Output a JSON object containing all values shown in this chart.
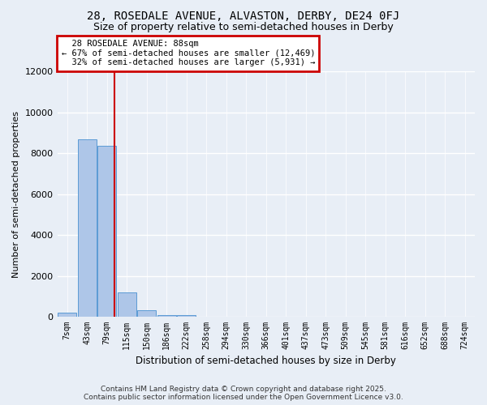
{
  "title": "28, ROSEDALE AVENUE, ALVASTON, DERBY, DE24 0FJ",
  "subtitle": "Size of property relative to semi-detached houses in Derby",
  "xlabel": "Distribution of semi-detached houses by size in Derby",
  "ylabel": "Number of semi-detached properties",
  "footer_line1": "Contains HM Land Registry data © Crown copyright and database right 2025.",
  "footer_line2": "Contains public sector information licensed under the Open Government Licence v3.0.",
  "bin_labels": [
    "7sqm",
    "43sqm",
    "79sqm",
    "115sqm",
    "150sqm",
    "186sqm",
    "222sqm",
    "258sqm",
    "294sqm",
    "330sqm",
    "366sqm",
    "401sqm",
    "437sqm",
    "473sqm",
    "509sqm",
    "545sqm",
    "581sqm",
    "616sqm",
    "652sqm",
    "688sqm",
    "724sqm"
  ],
  "bar_values": [
    200,
    8700,
    8350,
    1200,
    320,
    100,
    65,
    20,
    5,
    2,
    1,
    0,
    0,
    0,
    0,
    0,
    0,
    0,
    0,
    0,
    0
  ],
  "bar_color": "#aec6e8",
  "bar_edge_color": "#5b9bd5",
  "background_color": "#e8eef6",
  "grid_color": "#ffffff",
  "property_label": "28 ROSEDALE AVENUE: 88sqm",
  "pct_smaller": 67,
  "num_smaller": 12469,
  "pct_larger": 32,
  "num_larger": 5931,
  "vline_color": "#cc0000",
  "annotation_box_color": "#cc0000",
  "ylim": [
    0,
    12000
  ],
  "yticks": [
    0,
    2000,
    4000,
    6000,
    8000,
    10000,
    12000
  ],
  "vline_x_bin": 2.36
}
